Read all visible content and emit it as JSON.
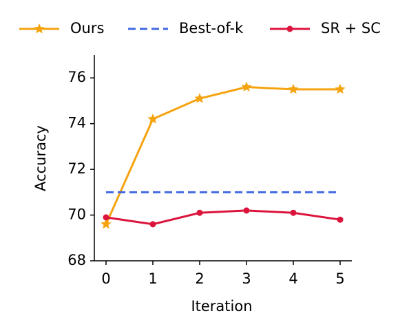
{
  "chart_data": {
    "type": "line",
    "x": [
      0,
      1,
      2,
      3,
      4,
      5
    ],
    "xlabel": "Iteration",
    "ylabel": "Accuracy",
    "xlim": [
      -0.25,
      5.25
    ],
    "xticks": [
      0,
      1,
      2,
      3,
      4,
      5
    ],
    "ylim": [
      68,
      77
    ],
    "yticks": [
      68,
      70,
      72,
      74,
      76
    ],
    "legend": "top",
    "series": [
      {
        "name": "Ours",
        "color": "#f5a30f",
        "marker": "star",
        "values": [
          69.6,
          74.2,
          75.1,
          75.6,
          75.5,
          75.5
        ]
      },
      {
        "name": "Best-of-k",
        "color": "#4169e1",
        "linestyle": "dashed",
        "values": [
          71,
          71,
          71,
          71,
          71,
          71
        ]
      },
      {
        "name": "SR + SC",
        "color": "#dc143c",
        "marker": "circle",
        "values": [
          69.9,
          69.6,
          70.1,
          70.2,
          70.1,
          69.8
        ]
      }
    ]
  }
}
